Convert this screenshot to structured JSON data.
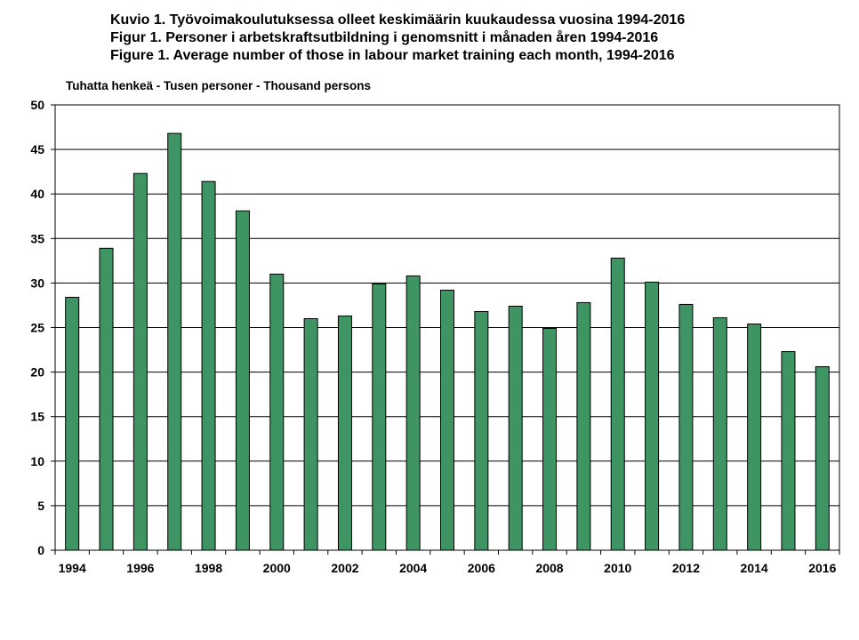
{
  "chart_data": {
    "type": "bar",
    "title_lines": [
      "Kuvio 1. Työvoimakoulutuksessa  olleet keskimäärin kuukaudessa vuosina 1994-2016",
      "Figur 1. Personer i arbetskraftsutbildning  i genomsnitt i månaden åren 1994-2016",
      "Figure 1. Average number of those in labour market training each month, 1994-2016"
    ],
    "ylabel": "Tuhatta henkeä - Tusen personer  - Thousand persons",
    "categories": [
      "1994",
      "1995",
      "1996",
      "1997",
      "1998",
      "1999",
      "2000",
      "2001",
      "2002",
      "2003",
      "2004",
      "2005",
      "2006",
      "2007",
      "2008",
      "2009",
      "2010",
      "2011",
      "2012",
      "2013",
      "2014",
      "2015",
      "2016"
    ],
    "x_tick_labels": [
      "1994",
      "1996",
      "1998",
      "2000",
      "2002",
      "2004",
      "2006",
      "2008",
      "2010",
      "2012",
      "2014",
      "2016"
    ],
    "values": [
      28.4,
      33.9,
      42.3,
      46.8,
      41.4,
      38.1,
      31.0,
      26.0,
      26.3,
      29.9,
      30.8,
      29.2,
      26.8,
      27.4,
      24.9,
      27.8,
      32.8,
      30.1,
      27.6,
      26.1,
      25.4,
      22.3,
      20.6
    ],
    "ylim": [
      0,
      50
    ],
    "yticks": [
      0,
      5,
      10,
      15,
      20,
      25,
      30,
      35,
      40,
      45,
      50
    ],
    "grid": true,
    "bar_color": "#3f9463",
    "bar_edge_color": "#000000"
  }
}
